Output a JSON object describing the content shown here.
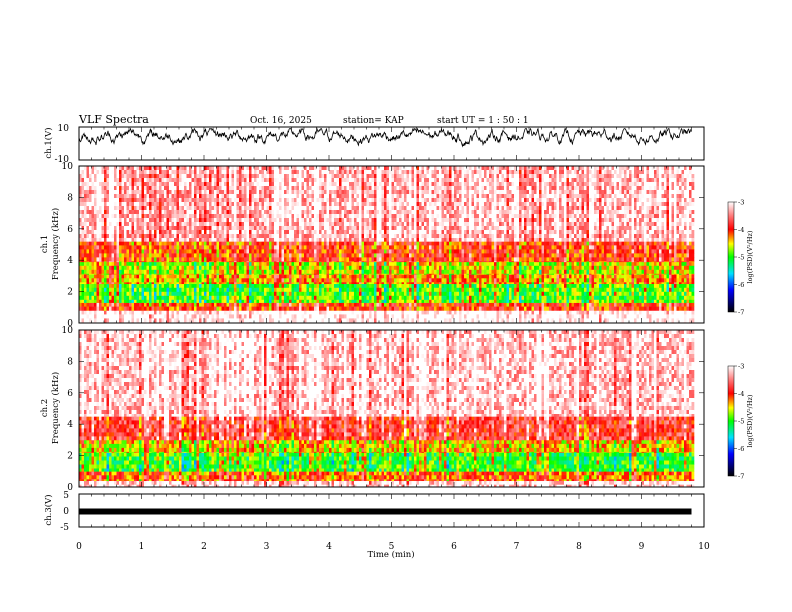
{
  "header": {
    "title": "VLF Spectra",
    "date": "Oct. 16, 2025",
    "station": "station= KAP",
    "start_ut": "start  UT =   1 : 50 : 1"
  },
  "chart_data": [
    {
      "type": "line",
      "name": "ch1-waveform",
      "ylabel": "ch.1(V)",
      "ylim": [
        -10,
        10
      ],
      "yticks": [
        "10",
        "-10"
      ],
      "xlim": [
        0,
        10
      ],
      "data_end_min": 9.8,
      "description_only": "noisy waveform between about -6 and +9 V"
    },
    {
      "type": "heatmap",
      "name": "ch1-spectrogram",
      "ylabel": "ch.1\nFrequency (kHz)",
      "ylim": [
        0,
        10
      ],
      "yticks": [
        "0",
        "2",
        "4",
        "6",
        "8",
        "10"
      ],
      "xlim": [
        0,
        10
      ],
      "data_end_min": 9.8,
      "colorbar": {
        "label": "log(PSD)(V²/Hz)",
        "ticks": [
          "-3",
          "-4",
          "-5",
          "-6",
          "-7"
        ],
        "range": [
          -7,
          -3
        ]
      },
      "bands": [
        {
          "from_khz": 0,
          "to_khz": 0.8,
          "level": -2.9
        },
        {
          "from_khz": 0.8,
          "to_khz": 1.3,
          "level": -4.0
        },
        {
          "from_khz": 1.3,
          "to_khz": 2.5,
          "level": -4.9
        },
        {
          "from_khz": 2.5,
          "to_khz": 3.1,
          "level": -4.3
        },
        {
          "from_khz": 3.1,
          "to_khz": 3.9,
          "level": -4.6
        },
        {
          "from_khz": 3.9,
          "to_khz": 5.2,
          "level": -4.0
        },
        {
          "from_khz": 5.2,
          "to_khz": 10,
          "level": -3.25
        }
      ]
    },
    {
      "type": "heatmap",
      "name": "ch2-spectrogram",
      "ylabel": "ch.2\nFrequency (kHz)",
      "ylim": [
        0,
        10
      ],
      "yticks": [
        "0",
        "2",
        "4",
        "6",
        "8",
        "10"
      ],
      "xlim": [
        0,
        10
      ],
      "data_end_min": 9.8,
      "colorbar": {
        "label": "log(PSD)(V²/Hz)",
        "ticks": [
          "-3",
          "-4",
          "-5",
          "-6",
          "-7"
        ],
        "range": [
          -7,
          -3
        ]
      },
      "bands": [
        {
          "from_khz": 0,
          "to_khz": 0.4,
          "level": -3.1
        },
        {
          "from_khz": 0.4,
          "to_khz": 1.0,
          "level": -4.2
        },
        {
          "from_khz": 1.0,
          "to_khz": 2.2,
          "level": -5.0
        },
        {
          "from_khz": 2.2,
          "to_khz": 3.0,
          "level": -4.5
        },
        {
          "from_khz": 3.0,
          "to_khz": 4.5,
          "level": -3.8
        },
        {
          "from_khz": 4.5,
          "to_khz": 10,
          "level": -3.2
        }
      ]
    },
    {
      "type": "line",
      "name": "ch3-waveform",
      "ylabel": "ch.3(V)",
      "ylim": [
        -5,
        5
      ],
      "yticks": [
        "5",
        "0",
        "-5"
      ],
      "xlim": [
        0,
        10
      ],
      "data_end_min": 9.8,
      "level_v": -0.3
    }
  ],
  "xaxis": {
    "label": "Time (min)",
    "ticks": [
      "0",
      "1",
      "2",
      "3",
      "4",
      "5",
      "6",
      "7",
      "8",
      "9",
      "10"
    ]
  }
}
